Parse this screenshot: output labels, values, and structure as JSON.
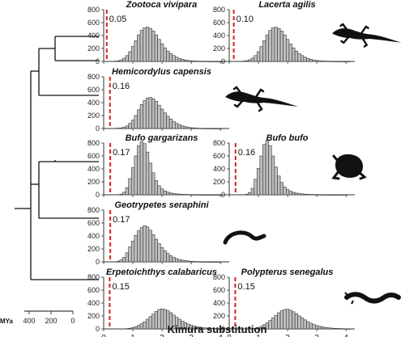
{
  "figure": {
    "xlabel": "Kimura substitution",
    "time_axis": {
      "label": "MYa",
      "ticks": [
        "400",
        "200",
        "0"
      ]
    }
  },
  "chart_data": [
    {
      "type": "bar",
      "title": "Zootoca vivipara",
      "threshold": 0.05,
      "threshold_label": "0.05",
      "xlim": [
        0,
        4.3
      ],
      "ylim": [
        0,
        800
      ],
      "x_ticks": [
        "0",
        "1",
        "2",
        "3",
        "4"
      ],
      "y_ticks": [
        "0",
        "200",
        "400",
        "600",
        "800"
      ],
      "silhouette": "lizard",
      "bin_width": 0.1,
      "x": [
        0.4,
        0.5,
        0.6,
        0.7,
        0.8,
        0.9,
        1.0,
        1.1,
        1.2,
        1.3,
        1.4,
        1.5,
        1.6,
        1.7,
        1.8,
        1.9,
        2.0,
        2.1,
        2.2,
        2.3,
        2.4,
        2.5,
        2.6,
        2.7,
        2.8,
        2.9,
        3.0,
        3.1,
        3.2,
        3.3,
        3.4,
        3.5,
        3.6,
        3.7,
        3.8,
        3.9,
        4.0,
        4.1
      ],
      "values": [
        5,
        10,
        25,
        50,
        90,
        150,
        230,
        320,
        410,
        480,
        520,
        530,
        510,
        470,
        410,
        340,
        270,
        210,
        160,
        120,
        90,
        65,
        45,
        32,
        22,
        15,
        10,
        7,
        5,
        4,
        3,
        3,
        2,
        2,
        1,
        1,
        1,
        1
      ]
    },
    {
      "type": "bar",
      "title": "Lacerta agilis",
      "threshold": 0.1,
      "threshold_label": "0.10",
      "xlim": [
        0,
        4.3
      ],
      "ylim": [
        0,
        800
      ],
      "x_ticks": [
        "0",
        "1",
        "2",
        "3",
        "4"
      ],
      "y_ticks": [
        "0",
        "200",
        "400",
        "600",
        "800"
      ],
      "silhouette": "lizard",
      "bin_width": 0.1,
      "x": [
        0.5,
        0.6,
        0.7,
        0.8,
        0.9,
        1.0,
        1.1,
        1.2,
        1.3,
        1.4,
        1.5,
        1.6,
        1.7,
        1.8,
        1.9,
        2.0,
        2.1,
        2.2,
        2.3,
        2.4,
        2.5,
        2.6,
        2.7,
        2.8,
        2.9,
        3.0,
        3.1,
        3.2,
        3.3,
        3.4,
        3.5,
        3.6,
        3.7,
        3.8,
        3.9,
        4.0,
        4.1
      ],
      "values": [
        5,
        12,
        25,
        50,
        90,
        150,
        230,
        320,
        410,
        480,
        520,
        530,
        510,
        470,
        410,
        340,
        270,
        210,
        160,
        120,
        90,
        65,
        45,
        32,
        22,
        15,
        10,
        7,
        5,
        4,
        3,
        2,
        2,
        1,
        1,
        1,
        1
      ]
    },
    {
      "type": "bar",
      "title": "Hemicordylus capensis",
      "threshold": 0.16,
      "threshold_label": "0.16",
      "xlim": [
        0,
        4.3
      ],
      "ylim": [
        0,
        800
      ],
      "x_ticks": [
        "0",
        "1",
        "2",
        "3",
        "4"
      ],
      "y_ticks": [
        "0",
        "200",
        "400",
        "600",
        "800"
      ],
      "silhouette": "lizard",
      "bin_width": 0.1,
      "x": [
        0.5,
        0.6,
        0.7,
        0.8,
        0.9,
        1.0,
        1.1,
        1.2,
        1.3,
        1.4,
        1.5,
        1.6,
        1.7,
        1.8,
        1.9,
        2.0,
        2.1,
        2.2,
        2.3,
        2.4,
        2.5,
        2.6,
        2.7,
        2.8,
        2.9,
        3.0,
        3.1,
        3.2,
        3.3,
        3.4,
        3.5,
        3.6,
        3.7,
        3.8,
        3.9,
        4.0
      ],
      "values": [
        5,
        10,
        20,
        40,
        80,
        130,
        200,
        290,
        370,
        430,
        470,
        480,
        460,
        420,
        360,
        300,
        240,
        190,
        145,
        110,
        80,
        58,
        40,
        28,
        19,
        13,
        9,
        6,
        4,
        3,
        2,
        2,
        1,
        1,
        1,
        1
      ]
    },
    {
      "type": "bar",
      "title": "Bufo gargarizans",
      "threshold": 0.17,
      "threshold_label": "0.17",
      "xlim": [
        0,
        4.3
      ],
      "ylim": [
        0,
        800
      ],
      "x_ticks": [
        "0",
        "1",
        "2",
        "3",
        "4"
      ],
      "y_ticks": [
        "0",
        "200",
        "400",
        "600",
        "800"
      ],
      "silhouette": "toad",
      "bin_width": 0.1,
      "x": [
        0.6,
        0.7,
        0.8,
        0.9,
        1.0,
        1.1,
        1.2,
        1.3,
        1.4,
        1.5,
        1.6,
        1.7,
        1.8,
        1.9,
        2.0,
        2.1,
        2.2,
        2.3,
        2.4,
        2.5,
        2.6,
        2.7,
        2.8,
        2.9,
        3.0,
        3.1,
        3.2,
        3.3,
        3.4,
        3.5,
        3.6,
        3.7,
        3.8,
        3.9,
        4.0
      ],
      "values": [
        10,
        40,
        110,
        250,
        420,
        600,
        760,
        820,
        790,
        660,
        490,
        340,
        220,
        140,
        90,
        60,
        40,
        28,
        20,
        14,
        10,
        7,
        5,
        4,
        3,
        2,
        2,
        1,
        1,
        1,
        1,
        1,
        1,
        1,
        1
      ]
    },
    {
      "type": "bar",
      "title": "Bufo bufo",
      "threshold": 0.16,
      "threshold_label": "0.16",
      "xlim": [
        0,
        4.3
      ],
      "ylim": [
        0,
        800
      ],
      "x_ticks": [
        "0",
        "1",
        "2",
        "3",
        "4"
      ],
      "y_ticks": [
        "0",
        "200",
        "400",
        "600",
        "800"
      ],
      "silhouette": "toad",
      "bin_width": 0.1,
      "x": [
        0.6,
        0.7,
        0.8,
        0.9,
        1.0,
        1.1,
        1.2,
        1.3,
        1.4,
        1.5,
        1.6,
        1.7,
        1.8,
        1.9,
        2.0,
        2.1,
        2.2,
        2.3,
        2.4,
        2.5,
        2.6,
        2.7,
        2.8,
        2.9,
        3.0,
        3.1,
        3.2,
        3.3,
        3.4,
        3.5,
        3.6,
        3.7,
        3.8,
        3.9,
        4.0
      ],
      "values": [
        8,
        35,
        100,
        240,
        410,
        600,
        780,
        840,
        760,
        600,
        430,
        290,
        190,
        120,
        80,
        55,
        38,
        26,
        18,
        13,
        9,
        6,
        5,
        4,
        3,
        2,
        2,
        1,
        1,
        1,
        1,
        1,
        1,
        1,
        1
      ]
    },
    {
      "type": "bar",
      "title": "Geotrypetes seraphini",
      "threshold": 0.17,
      "threshold_label": "0.17",
      "xlim": [
        0,
        4.3
      ],
      "ylim": [
        0,
        800
      ],
      "x_ticks": [
        "0",
        "1",
        "2",
        "3",
        "4"
      ],
      "y_ticks": [
        "0",
        "200",
        "400",
        "600",
        "800"
      ],
      "silhouette": "caecilian",
      "bin_width": 0.1,
      "x": [
        0.5,
        0.6,
        0.7,
        0.8,
        0.9,
        1.0,
        1.1,
        1.2,
        1.3,
        1.4,
        1.5,
        1.6,
        1.7,
        1.8,
        1.9,
        2.0,
        2.1,
        2.2,
        2.3,
        2.4,
        2.5,
        2.6,
        2.7,
        2.8,
        2.9,
        3.0,
        3.1,
        3.2,
        3.3,
        3.4,
        3.5,
        3.6,
        3.7,
        3.8,
        3.9,
        4.0
      ],
      "values": [
        10,
        30,
        70,
        140,
        230,
        320,
        410,
        480,
        530,
        560,
        540,
        490,
        420,
        350,
        280,
        220,
        170,
        130,
        95,
        70,
        50,
        36,
        26,
        18,
        13,
        9,
        6,
        4,
        3,
        2,
        2,
        1,
        1,
        1,
        1,
        1
      ]
    },
    {
      "type": "bar",
      "title": "Erpetoichthys calabaricus",
      "threshold": 0.15,
      "threshold_label": "0.15",
      "xlim": [
        0,
        4.3
      ],
      "ylim": [
        0,
        800
      ],
      "x_ticks": [
        "0",
        "1",
        "2",
        "3",
        "4"
      ],
      "y_ticks": [
        "0",
        "200",
        "400",
        "600",
        "800"
      ],
      "silhouette": "eel-fish",
      "bin_width": 0.1,
      "x": [
        0.8,
        0.9,
        1.0,
        1.1,
        1.2,
        1.3,
        1.4,
        1.5,
        1.6,
        1.7,
        1.8,
        1.9,
        2.0,
        2.1,
        2.2,
        2.3,
        2.4,
        2.5,
        2.6,
        2.7,
        2.8,
        2.9,
        3.0,
        3.1,
        3.2,
        3.3,
        3.4,
        3.5,
        3.6,
        3.7,
        3.8,
        3.9,
        4.0,
        4.1
      ],
      "values": [
        5,
        10,
        20,
        35,
        55,
        80,
        110,
        150,
        190,
        230,
        270,
        300,
        310,
        300,
        280,
        250,
        215,
        180,
        150,
        120,
        95,
        75,
        58,
        45,
        34,
        26,
        20,
        15,
        11,
        8,
        6,
        4,
        3,
        2
      ]
    },
    {
      "type": "bar",
      "title": "Polypterus senegalus",
      "threshold": 0.15,
      "threshold_label": "0.15",
      "xlim": [
        0,
        4.3
      ],
      "ylim": [
        0,
        800
      ],
      "x_ticks": [
        "0",
        "1",
        "2",
        "3",
        "4"
      ],
      "y_ticks": [
        "0",
        "200",
        "400",
        "600",
        "800"
      ],
      "silhouette": "eel-fish",
      "bin_width": 0.1,
      "x": [
        0.8,
        0.9,
        1.0,
        1.1,
        1.2,
        1.3,
        1.4,
        1.5,
        1.6,
        1.7,
        1.8,
        1.9,
        2.0,
        2.1,
        2.2,
        2.3,
        2.4,
        2.5,
        2.6,
        2.7,
        2.8,
        2.9,
        3.0,
        3.1,
        3.2,
        3.3,
        3.4,
        3.5,
        3.6,
        3.7,
        3.8,
        3.9,
        4.0,
        4.1
      ],
      "values": [
        5,
        10,
        20,
        40,
        65,
        95,
        130,
        170,
        210,
        250,
        280,
        300,
        305,
        290,
        265,
        235,
        200,
        170,
        140,
        112,
        88,
        68,
        52,
        40,
        30,
        23,
        17,
        13,
        9,
        7,
        5,
        4,
        3,
        2
      ]
    }
  ]
}
